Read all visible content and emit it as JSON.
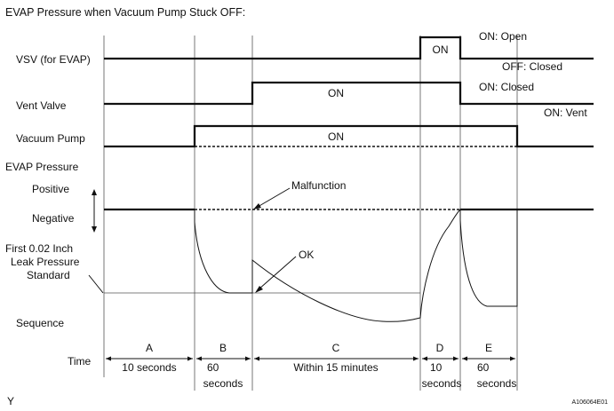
{
  "title": "EVAP Pressure when Vacuum Pump Stuck OFF:",
  "rows": {
    "vsv": "VSV (for EVAP)",
    "vent": "Vent Valve",
    "pump": "Vacuum Pump",
    "evap": "EVAP Pressure",
    "positive": "Positive",
    "negative": "Negative",
    "leak_std_line1": "First 0.02 Inch",
    "leak_std_line2": "Leak Pressure",
    "leak_std_line3": "Standard",
    "sequence": "Sequence",
    "time": "Time"
  },
  "state_labels": {
    "vsv_on": "ON: Open",
    "vsv_off": "OFF: Closed",
    "vent_on": "ON: Closed",
    "vent_off": "ON: Vent"
  },
  "pulse_labels": {
    "vsv": "ON",
    "vent": "ON",
    "pump": "ON"
  },
  "annotations": {
    "malfunction": "Malfunction",
    "ok": "OK"
  },
  "sequence": [
    {
      "id": "A",
      "time": "10 seconds"
    },
    {
      "id": "B",
      "time": "60",
      "time2": "seconds"
    },
    {
      "id": "C",
      "time": "Within 15 minutes"
    },
    {
      "id": "D",
      "time": "10",
      "time2": "seconds"
    },
    {
      "id": "E",
      "time": "60",
      "time2": "seconds"
    }
  ],
  "footer": {
    "left": "Y",
    "right": "A106064E01"
  }
}
